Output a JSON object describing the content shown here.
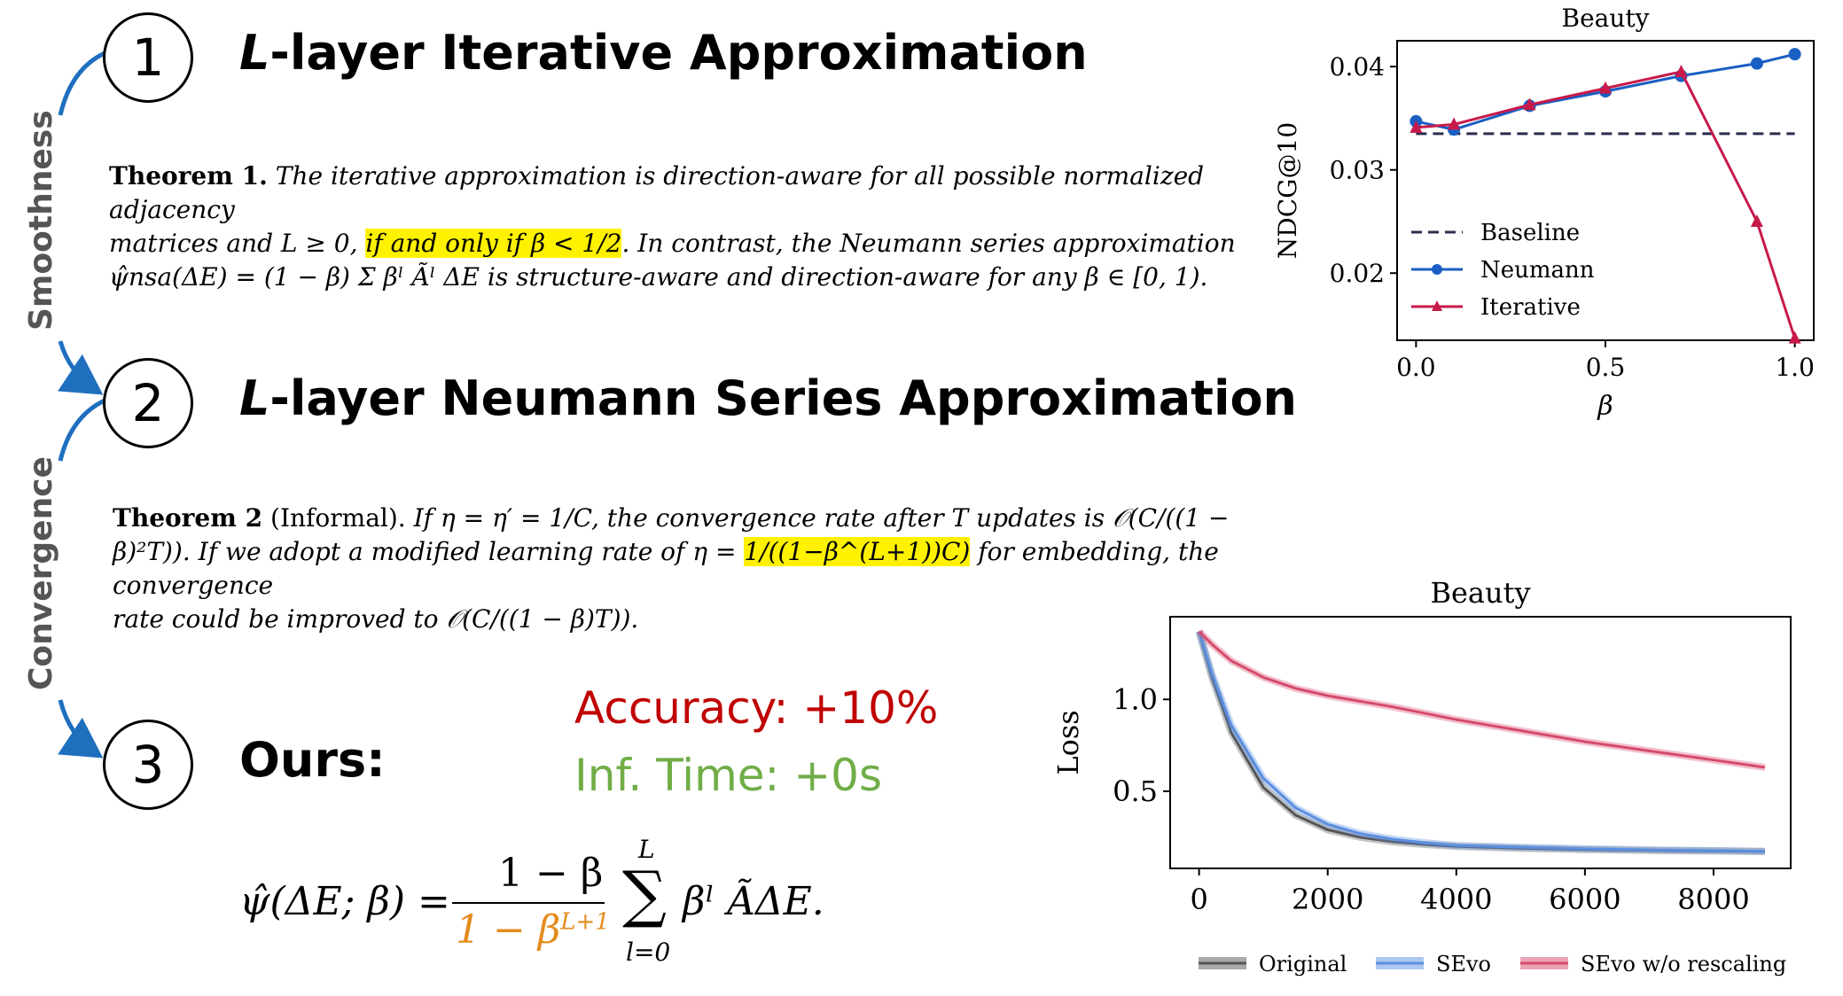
{
  "steps": {
    "step1": {
      "number": "1",
      "title_var": "L",
      "title_rest": "-layer Iterative Approximation"
    },
    "step2": {
      "number": "2",
      "title_var": "L",
      "title_rest": "-layer Neumann Series Approximation"
    },
    "step3": {
      "number": "3",
      "title": "Ours:"
    }
  },
  "side_labels": {
    "smoothness": "Smoothness",
    "convergence": "Convergence"
  },
  "theorem1": {
    "name": "Theorem 1.",
    "line1": "The iterative approximation is direction-aware for all possible normalized adjacency",
    "line2_pre": "matrices and L ≥ 0, ",
    "line2_highlight": "if and only if β < 1/2",
    "line2_post": ". In contrast, the Neumann series approximation",
    "line3": "ψ̂nsa(ΔE) = (1 − β) Σ βˡ Ãˡ ΔE is structure-aware and direction-aware for any β ∈ [0, 1)."
  },
  "theorem2": {
    "name": "Theorem 2",
    "qualifier": "(Informal).",
    "line1": "If η = η′ = 1/C, the convergence rate after T updates is 𝒪(C/((1 −",
    "line2_pre": "β)²T)). If we adopt a modified learning rate of η = ",
    "line2_highlight": "1/((1−β^(L+1))C)",
    "line2_post": " for embedding, the convergence",
    "line3": "rate could be improved to 𝒪(C/((1 − β)T))."
  },
  "results": {
    "accuracy": "Accuracy: +10%",
    "inference": "Inf. Time: +0s",
    "accuracy_color": "#c00000",
    "inference_color": "#70ad47"
  },
  "formula": {
    "lhs": "ψ̂(ΔE; β) =",
    "numerator": "1 − β",
    "denominator": "1 − β",
    "denominator_exp": "L+1",
    "sum_top": "L",
    "sum_bottom": "l=0",
    "sum_symbol": "∑",
    "rhs": "βˡ ÃΔE.",
    "denominator_color": "#e38b1c"
  },
  "colors": {
    "arrow": "#1f6fbf"
  },
  "chart_data": [
    {
      "type": "line",
      "title": "Beauty",
      "xlabel": "β",
      "ylabel": "NDCG@10",
      "xlim": [
        -0.05,
        1.05
      ],
      "ylim": [
        0.0135,
        0.0425
      ],
      "xticks": [
        0.0,
        0.5,
        1.0
      ],
      "xtick_labels": [
        "0.0",
        "0.5",
        "1.0"
      ],
      "yticks": [
        0.02,
        0.03,
        0.04
      ],
      "ytick_labels": [
        "0.02",
        "0.03",
        "0.04"
      ],
      "legend_position": "bottom-left",
      "series": [
        {
          "name": "Baseline",
          "style": "dashed",
          "color": "#2b2d4e",
          "marker": "none",
          "x": [
            0.0,
            1.0
          ],
          "y": [
            0.0335,
            0.0335
          ]
        },
        {
          "name": "Neumann",
          "style": "solid",
          "color": "#1a5fc4",
          "marker": "circle",
          "x": [
            0.0,
            0.1,
            0.3,
            0.5,
            0.7,
            0.9,
            1.0
          ],
          "y": [
            0.0347,
            0.0339,
            0.0362,
            0.0376,
            0.0391,
            0.0403,
            0.0412
          ]
        },
        {
          "name": "Iterative",
          "style": "solid",
          "color": "#c71a4a",
          "marker": "triangle",
          "x": [
            0.0,
            0.1,
            0.3,
            0.5,
            0.7,
            0.9,
            1.0
          ],
          "y": [
            0.0341,
            0.0344,
            0.0363,
            0.0379,
            0.0395,
            0.025,
            0.0137
          ]
        }
      ]
    },
    {
      "type": "line",
      "title": "Beauty",
      "xlabel": "",
      "ylabel": "Loss",
      "xlim": [
        -450,
        9200
      ],
      "ylim": [
        0.08,
        1.45
      ],
      "xticks": [
        0,
        2000,
        4000,
        6000,
        8000
      ],
      "xtick_labels": [
        "0",
        "2000",
        "4000",
        "6000",
        "8000"
      ],
      "yticks": [
        0.5,
        1.0
      ],
      "ytick_labels": [
        "0.5",
        "1.0"
      ],
      "legend_position": "bottom-outside",
      "series": [
        {
          "name": "Original",
          "color": "#555555",
          "x": [
            0,
            200,
            500,
            1000,
            1500,
            2000,
            2500,
            3000,
            3500,
            4000,
            5000,
            6000,
            7000,
            8000,
            8800
          ],
          "y": [
            1.37,
            1.12,
            0.82,
            0.52,
            0.37,
            0.29,
            0.25,
            0.225,
            0.21,
            0.2,
            0.19,
            0.183,
            0.178,
            0.175,
            0.172
          ]
        },
        {
          "name": "SEvo",
          "color": "#5b8fe0",
          "x": [
            0,
            200,
            500,
            1000,
            1500,
            2000,
            2500,
            3000,
            3500,
            4000,
            5000,
            6000,
            7000,
            8000,
            8800
          ],
          "y": [
            1.37,
            1.14,
            0.86,
            0.57,
            0.41,
            0.32,
            0.27,
            0.24,
            0.22,
            0.205,
            0.195,
            0.187,
            0.181,
            0.177,
            0.173
          ]
        },
        {
          "name": "SEvo w/o rescaling",
          "color": "#d64a6c",
          "x": [
            0,
            200,
            500,
            1000,
            1500,
            2000,
            3000,
            4000,
            5000,
            6000,
            7000,
            8000,
            8800
          ],
          "y": [
            1.37,
            1.3,
            1.21,
            1.12,
            1.06,
            1.02,
            0.96,
            0.89,
            0.83,
            0.77,
            0.72,
            0.67,
            0.63
          ]
        }
      ]
    }
  ]
}
